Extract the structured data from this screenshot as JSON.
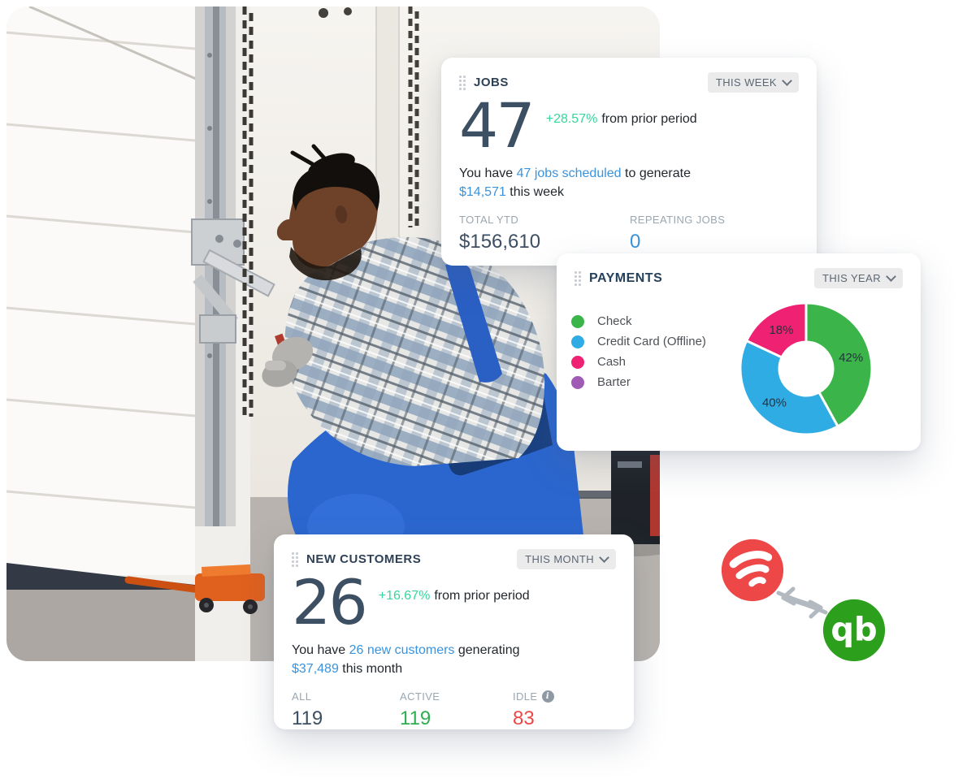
{
  "page": {
    "background": "#ffffff"
  },
  "photo": {
    "description": "Technician with plaid shirt and blue overalls crouching while repairing a white garage door track"
  },
  "icons": {
    "info": "i"
  },
  "cards": {
    "jobs": {
      "title": "JOBS",
      "period": "THIS WEEK",
      "value": "47",
      "delta": "+28.57%",
      "delta_suffix": "from prior period",
      "summary_line1": [
        {
          "text": "You have "
        },
        {
          "text": "47 jobs scheduled",
          "link": true
        },
        {
          "text": " to generate"
        }
      ],
      "summary_line2": [
        {
          "text": "$14,571",
          "link": true
        },
        {
          "text": " this week"
        }
      ],
      "stats": [
        {
          "label": "TOTAL YTD",
          "value": "$156,610",
          "color": "#3d4f63"
        },
        {
          "label": "REPEATING JOBS",
          "value": "0",
          "color": "#3a93dc"
        }
      ]
    },
    "payments": {
      "title": "PAYMENTS",
      "period": "THIS YEAR",
      "legend": [
        {
          "label": "Check",
          "color": "#3bb54a"
        },
        {
          "label": "Credit Card (Offline)",
          "color": "#30ace4"
        },
        {
          "label": "Cash",
          "color": "#ee2172"
        },
        {
          "label": "Barter",
          "color": "#a05cb5"
        }
      ]
    },
    "new_customers": {
      "title": "NEW CUSTOMERS",
      "period": "THIS MONTH",
      "value": "26",
      "delta": "+16.67%",
      "delta_suffix": "from prior period",
      "summary_line1": [
        {
          "text": "You have "
        },
        {
          "text": "26 new customers",
          "link": true
        },
        {
          "text": " generating"
        }
      ],
      "summary_line2": [
        {
          "text": "$37,489",
          "link": true
        },
        {
          "text": " this month"
        }
      ],
      "stats": [
        {
          "label": "ALL",
          "value": "119",
          "color": "#3d4f63"
        },
        {
          "label": "ACTIVE",
          "value": "119",
          "color": "#2eae52"
        },
        {
          "label": "IDLE",
          "value": "83",
          "color": "#ea4848",
          "info": true
        }
      ]
    }
  },
  "chart_data": {
    "type": "pie",
    "variant": "donut",
    "title": "PAYMENTS",
    "period": "THIS YEAR",
    "series": [
      {
        "name": "Check",
        "pct": 42,
        "color": "#3bb54a"
      },
      {
        "name": "Credit Card (Offline)",
        "pct": 40,
        "color": "#30ace4"
      },
      {
        "name": "Cash",
        "pct": 18,
        "color": "#ee2172"
      },
      {
        "name": "Barter",
        "pct": 0,
        "color": "#a05cb5"
      }
    ],
    "start_angle_deg": 0,
    "clockwise": true,
    "inner_radius_ratio": 0.41,
    "slice_label_color": "#26323e",
    "legend_position": "left"
  },
  "logos": {
    "app_name": "field-service-app",
    "app_color": "#ee4748",
    "quickbooks_text": "qb",
    "quickbooks_color": "#2ca01c",
    "arrow_color": "#b3b9c1"
  },
  "colors": {
    "accent_blue": "#3a93dc",
    "positive_teal": "#36d69c",
    "title": "#2e4156",
    "big_number": "#3d4f63",
    "label_gray": "#9aa6b0",
    "body_text": "#23282e",
    "pill_bg": "#ebebec",
    "pill_text": "#5d6774",
    "stat_green": "#2eae52",
    "stat_red": "#ea4848"
  }
}
